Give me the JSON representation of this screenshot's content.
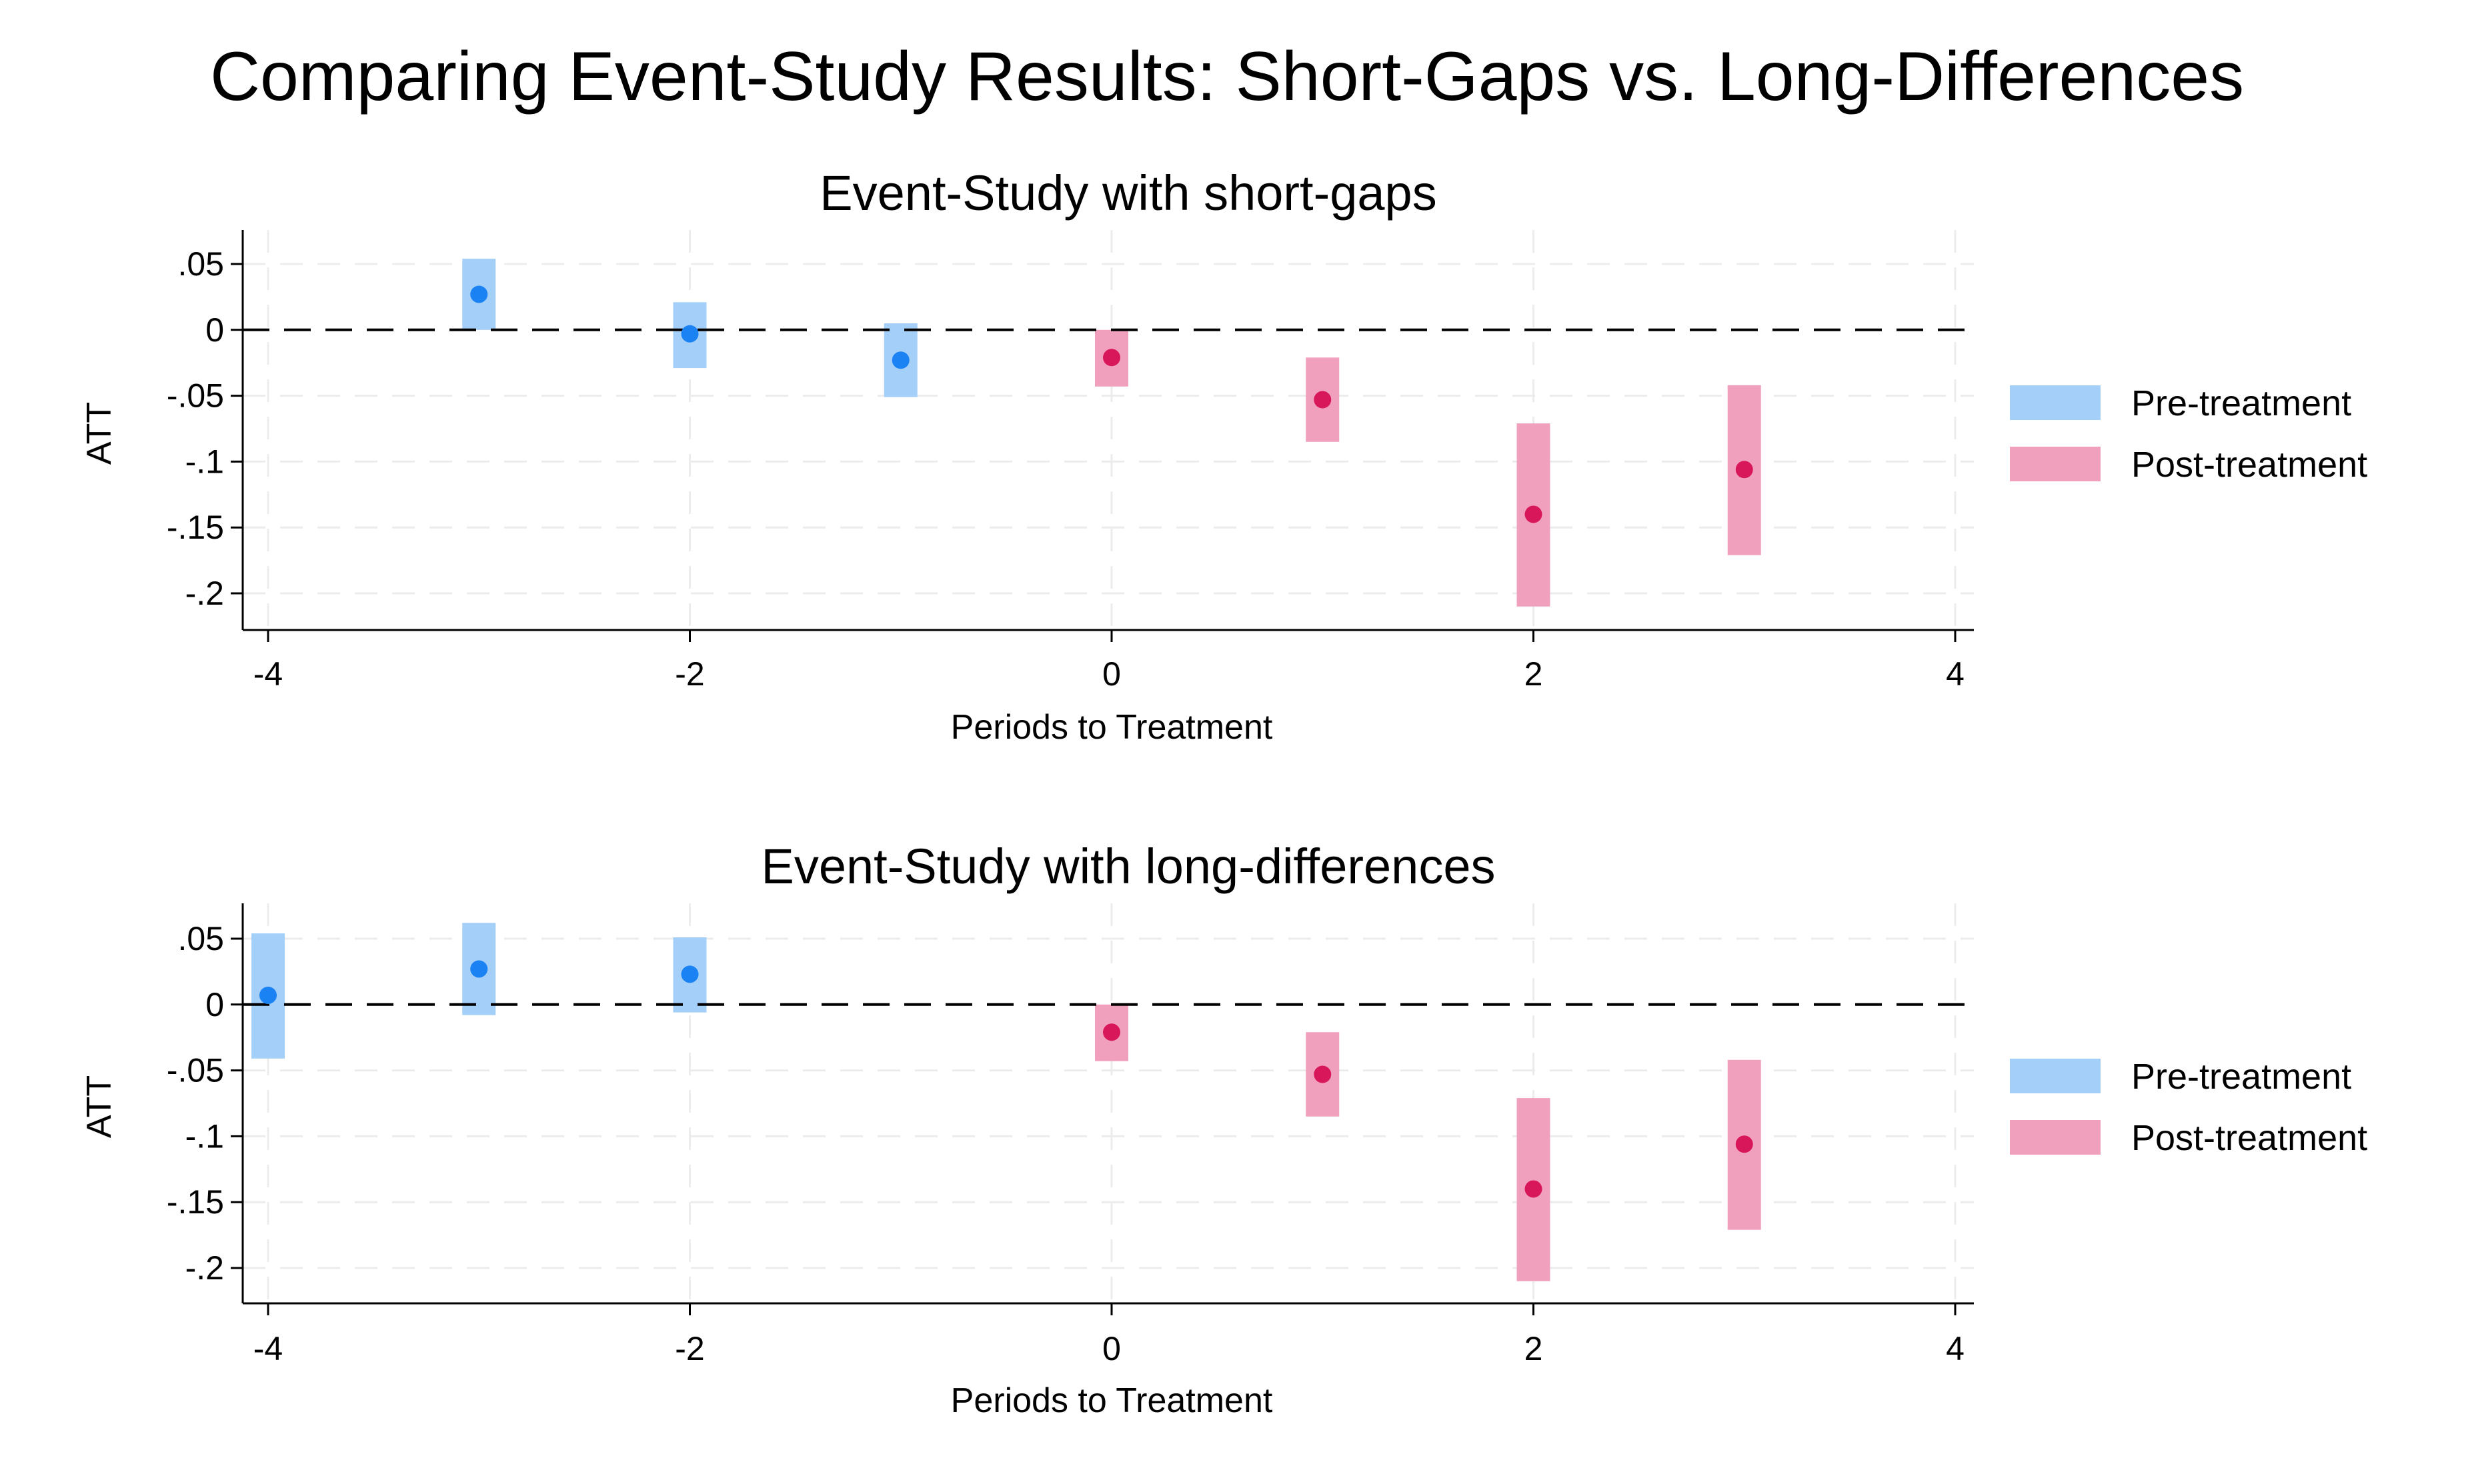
{
  "figure_title": "Comparing Event-Study Results: Short-Gaps vs. Long-Differences",
  "colors": {
    "pre_band": "#a3cff8",
    "pre_point": "#1a82f2",
    "post_band": "#f0a0bc",
    "post_point": "#d8175a"
  },
  "chart_data": [
    {
      "type": "scatter",
      "title": "Event-Study with short-gaps",
      "xlabel": "Periods to Treatment",
      "ylabel": "ATT",
      "xlim": [
        -4,
        4
      ],
      "ylim": [
        -0.2,
        0.05
      ],
      "x_ticks": [
        -4,
        -2,
        0,
        2,
        4
      ],
      "x_tick_labels": [
        "-4",
        "-2",
        "0",
        "2",
        "4"
      ],
      "y_ticks": [
        0.05,
        0,
        -0.05,
        -0.1,
        -0.15,
        -0.2
      ],
      "y_tick_labels": [
        ".05",
        "0",
        "-.05",
        "-.1",
        "-.15",
        "-.2"
      ],
      "grid": true,
      "reference_line_y": 0,
      "legend_position": "right",
      "series": [
        {
          "name": "Pre-treatment",
          "points": [
            {
              "x": -3,
              "y": 0.027,
              "lo": 0.0,
              "hi": 0.054
            },
            {
              "x": -2,
              "y": -0.003,
              "lo": -0.029,
              "hi": 0.021
            },
            {
              "x": -1,
              "y": -0.023,
              "lo": -0.051,
              "hi": 0.005
            }
          ]
        },
        {
          "name": "Post-treatment",
          "points": [
            {
              "x": 0,
              "y": -0.021,
              "lo": -0.043,
              "hi": 0.0
            },
            {
              "x": 1,
              "y": -0.053,
              "lo": -0.085,
              "hi": -0.021
            },
            {
              "x": 2,
              "y": -0.14,
              "lo": -0.21,
              "hi": -0.071
            },
            {
              "x": 3,
              "y": -0.106,
              "lo": -0.171,
              "hi": -0.042
            }
          ]
        }
      ]
    },
    {
      "type": "scatter",
      "title": "Event-Study with long-differences",
      "xlabel": "Periods to Treatment",
      "ylabel": "ATT",
      "xlim": [
        -4,
        4
      ],
      "ylim": [
        -0.2,
        0.05
      ],
      "x_ticks": [
        -4,
        -2,
        0,
        2,
        4
      ],
      "x_tick_labels": [
        "-4",
        "-2",
        "0",
        "2",
        "4"
      ],
      "y_ticks": [
        0.05,
        0,
        -0.05,
        -0.1,
        -0.15,
        -0.2
      ],
      "y_tick_labels": [
        ".05",
        "0",
        "-.05",
        "-.1",
        "-.15",
        "-.2"
      ],
      "grid": true,
      "reference_line_y": 0,
      "legend_position": "right",
      "series": [
        {
          "name": "Pre-treatment",
          "points": [
            {
              "x": -4,
              "y": 0.007,
              "lo": -0.041,
              "hi": 0.054
            },
            {
              "x": -3,
              "y": 0.027,
              "lo": -0.008,
              "hi": 0.062
            },
            {
              "x": -2,
              "y": 0.023,
              "lo": -0.006,
              "hi": 0.051
            }
          ]
        },
        {
          "name": "Post-treatment",
          "points": [
            {
              "x": 0,
              "y": -0.021,
              "lo": -0.043,
              "hi": 0.0
            },
            {
              "x": 1,
              "y": -0.053,
              "lo": -0.085,
              "hi": -0.021
            },
            {
              "x": 2,
              "y": -0.14,
              "lo": -0.21,
              "hi": -0.071
            },
            {
              "x": 3,
              "y": -0.106,
              "lo": -0.171,
              "hi": -0.042
            }
          ]
        }
      ]
    }
  ]
}
